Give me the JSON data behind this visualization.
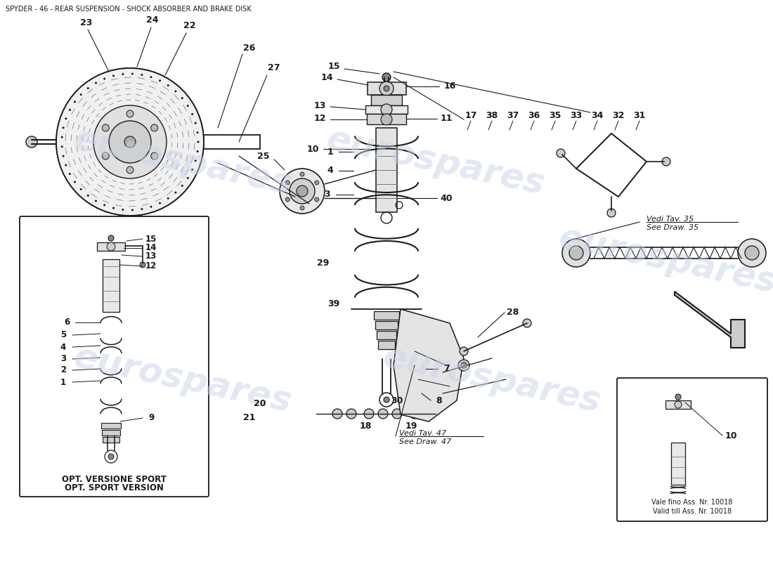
{
  "title": "SPYDER - 46 - REAR SUSPENSION - SHOCK ABSORBER AND BRAKE DISK",
  "title_fontsize": 7,
  "bg_color": "#ffffff",
  "line_color": "#1a1a1a",
  "watermark_text": "eurospares",
  "watermark_color": "#c8d4e8",
  "watermark_fontsize": 36,
  "figsize": [
    11.0,
    8.0
  ],
  "dpi": 100,
  "box1_text": [
    "OPT. VERSIONE SPORT",
    "OPT. SPORT VERSION"
  ],
  "ref35": [
    "Vedi Tav. 35",
    "See Draw. 35"
  ],
  "ref47": [
    "Vedi Tav. 47",
    "See Draw. 47"
  ],
  "ref_valid": [
    "Vale fino Ass. Nr. 10018",
    "Valid till Ass. Nr. 10018"
  ]
}
